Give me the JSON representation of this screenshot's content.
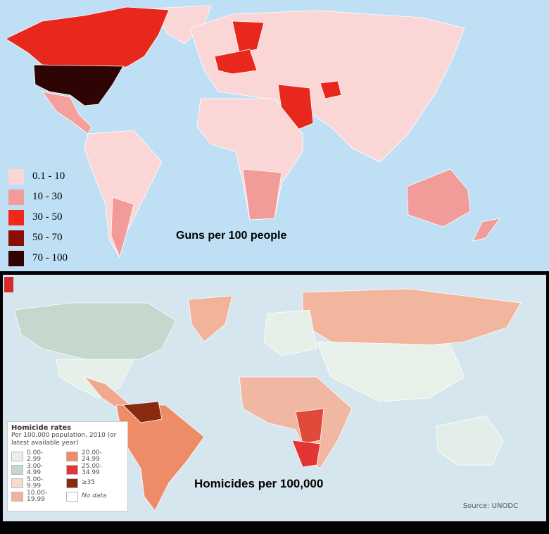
{
  "top_map": {
    "title": "Guns per 100 people",
    "legend": [
      {
        "label": "0.1 - 10",
        "color": "#fbd6d6"
      },
      {
        "label": "10 - 30",
        "color": "#f29c9a"
      },
      {
        "label": "30 - 50",
        "color": "#f2281a"
      },
      {
        "label": "50 - 70",
        "color": "#8c0c06"
      },
      {
        "label": "70 - 100",
        "color": "#2e0404"
      }
    ]
  },
  "bottom_map": {
    "title": "Homicides per 100,000",
    "legend_title": "Homicide rates",
    "legend_subtitle": "Per 100,000 population, 2010 (or latest available year)",
    "legend": [
      {
        "label": "0.00-2.99",
        "color": "#e8f0ea"
      },
      {
        "label": "3.00-4.99",
        "color": "#c6d7cd"
      },
      {
        "label": "5.00-9.99",
        "color": "#f4dccf"
      },
      {
        "label": "10.00-19.99",
        "color": "#f0b39c"
      },
      {
        "label": "20.00-24.99",
        "color": "#ef8c68"
      },
      {
        "label": "25.00-34.99",
        "color": "#e23636"
      },
      {
        "label": "≥35",
        "color": "#8a2a10"
      },
      {
        "label": "No data",
        "color": "#ffffff"
      }
    ],
    "source": "Source: UNODC"
  }
}
